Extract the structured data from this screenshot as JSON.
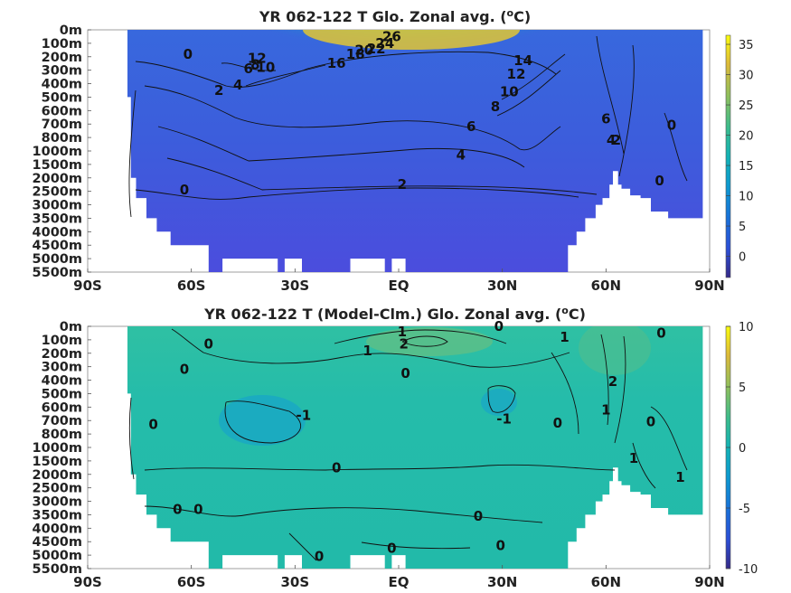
{
  "chart_data": [
    {
      "type": "heatmap",
      "title": "YR 062-122 T Glo. Zonal avg. (",
      "title_sup": "o",
      "title_end": "C)",
      "x_ticks": [
        "90S",
        "60S",
        "30S",
        "EQ",
        "30N",
        "60N",
        "90N"
      ],
      "x_values": [
        -90,
        -60,
        -30,
        0,
        30,
        60,
        90
      ],
      "xlim": [
        -90,
        90
      ],
      "y_ticks": [
        "0m",
        "100m",
        "200m",
        "300m",
        "400m",
        "500m",
        "600m",
        "700m",
        "800m",
        "1000m",
        "1500m",
        "2000m",
        "2500m",
        "3000m",
        "3500m",
        "4000m",
        "4500m",
        "5000m",
        "5500m"
      ],
      "colorbar": {
        "ticks": [
          35,
          30,
          25,
          20,
          15,
          10,
          5,
          0
        ],
        "range": [
          -3.5,
          36.5
        ],
        "colormap": "parula"
      },
      "grid": false,
      "contour_labels": [
        {
          "text": "26",
          "lat": -2,
          "lev": 0.5
        },
        {
          "text": "24",
          "lat": -4,
          "lev": 1
        },
        {
          "text": "22",
          "lat": -6.5,
          "lev": 1.4
        },
        {
          "text": "20",
          "lat": -10,
          "lev": 1.5
        },
        {
          "text": "18",
          "lat": -12.5,
          "lev": 1.8
        },
        {
          "text": "16",
          "lat": -18,
          "lev": 2.5
        },
        {
          "text": "14",
          "lat": 36,
          "lev": 2.3
        },
        {
          "text": "12",
          "lat": 34,
          "lev": 3.3
        },
        {
          "text": "10",
          "lat": 32,
          "lev": 4.6
        },
        {
          "text": "8",
          "lat": 28,
          "lev": 5.7
        },
        {
          "text": "6",
          "lat": 21,
          "lev": 7.2
        },
        {
          "text": "4",
          "lat": 18,
          "lev": 9.3
        },
        {
          "text": "2",
          "lat": 1,
          "lev": 11.5
        },
        {
          "text": "0",
          "lat": -62,
          "lev": 11.9
        },
        {
          "text": "0",
          "lat": -61,
          "lev": 1.8
        },
        {
          "text": "2",
          "lat": -52,
          "lev": 4.5
        },
        {
          "text": "4",
          "lat": -46.5,
          "lev": 4.1
        },
        {
          "text": "6",
          "lat": -43.5,
          "lev": 2.9
        },
        {
          "text": "8",
          "lat": -41.5,
          "lev": 2.6
        },
        {
          "text": "10",
          "lat": -38.5,
          "lev": 2.8
        },
        {
          "text": "12",
          "lat": -41,
          "lev": 2.1
        },
        {
          "text": "6",
          "lat": 60,
          "lev": 6.6
        },
        {
          "text": "4",
          "lat": 61.5,
          "lev": 8.2
        },
        {
          "text": "2",
          "lat": 63,
          "lev": 8.2
        },
        {
          "text": "0",
          "lat": 79,
          "lev": 7.1
        },
        {
          "text": "0",
          "lat": 75.5,
          "lev": 11.2
        }
      ]
    },
    {
      "type": "heatmap",
      "title": "YR 062-122 T (Model-Clm.) Glo. Zonal avg. (",
      "title_sup": "o",
      "title_end": "C)",
      "x_ticks": [
        "90S",
        "60S",
        "30S",
        "EQ",
        "30N",
        "60N",
        "90N"
      ],
      "x_values": [
        -90,
        -60,
        -30,
        0,
        30,
        60,
        90
      ],
      "xlim": [
        -90,
        90
      ],
      "y_ticks": [
        "0m",
        "100m",
        "200m",
        "300m",
        "400m",
        "500m",
        "600m",
        "700m",
        "800m",
        "1000m",
        "1500m",
        "2000m",
        "2500m",
        "3000m",
        "3500m",
        "4000m",
        "4500m",
        "5000m",
        "5500m"
      ],
      "colorbar": {
        "ticks": [
          10,
          5,
          0,
          -5,
          -10
        ],
        "range": [
          -10,
          10
        ],
        "colormap": "parula"
      },
      "grid": false,
      "contour_labels": [
        {
          "text": "1",
          "lat": 1,
          "lev": 0.4
        },
        {
          "text": "2",
          "lat": 1.5,
          "lev": 1.3
        },
        {
          "text": "0",
          "lat": 29,
          "lev": 0
        },
        {
          "text": "1",
          "lat": 48,
          "lev": 0.8
        },
        {
          "text": "1",
          "lat": -9,
          "lev": 1.8
        },
        {
          "text": "0",
          "lat": 2,
          "lev": 3.5
        },
        {
          "text": "0",
          "lat": -55,
          "lev": 1.3
        },
        {
          "text": "0",
          "lat": -62,
          "lev": 3.2
        },
        {
          "text": "-1",
          "lat": -27.5,
          "lev": 6.6
        },
        {
          "text": "-1",
          "lat": 30.5,
          "lev": 6.9
        },
        {
          "text": "0",
          "lat": 46,
          "lev": 7.2
        },
        {
          "text": "0",
          "lat": -71,
          "lev": 7.3
        },
        {
          "text": "0",
          "lat": -18,
          "lev": 10.5
        },
        {
          "text": "1",
          "lat": 60,
          "lev": 6.2
        },
        {
          "text": "2",
          "lat": 62,
          "lev": 4.1
        },
        {
          "text": "0",
          "lat": 73,
          "lev": 7.1
        },
        {
          "text": "0",
          "lat": 76,
          "lev": 0.5
        },
        {
          "text": "1",
          "lat": 68,
          "lev": 9.8
        },
        {
          "text": "1",
          "lat": 81.5,
          "lev": 11.2
        },
        {
          "text": "0",
          "lat": -64,
          "lev": 13.6
        },
        {
          "text": "0",
          "lat": -58,
          "lev": 13.6
        },
        {
          "text": "0",
          "lat": 23,
          "lev": 14.1
        },
        {
          "text": "0",
          "lat": -2,
          "lev": 16.5
        },
        {
          "text": "0",
          "lat": 29.5,
          "lev": 16.3
        },
        {
          "text": "0",
          "lat": -23,
          "lev": 17.1
        }
      ]
    }
  ]
}
